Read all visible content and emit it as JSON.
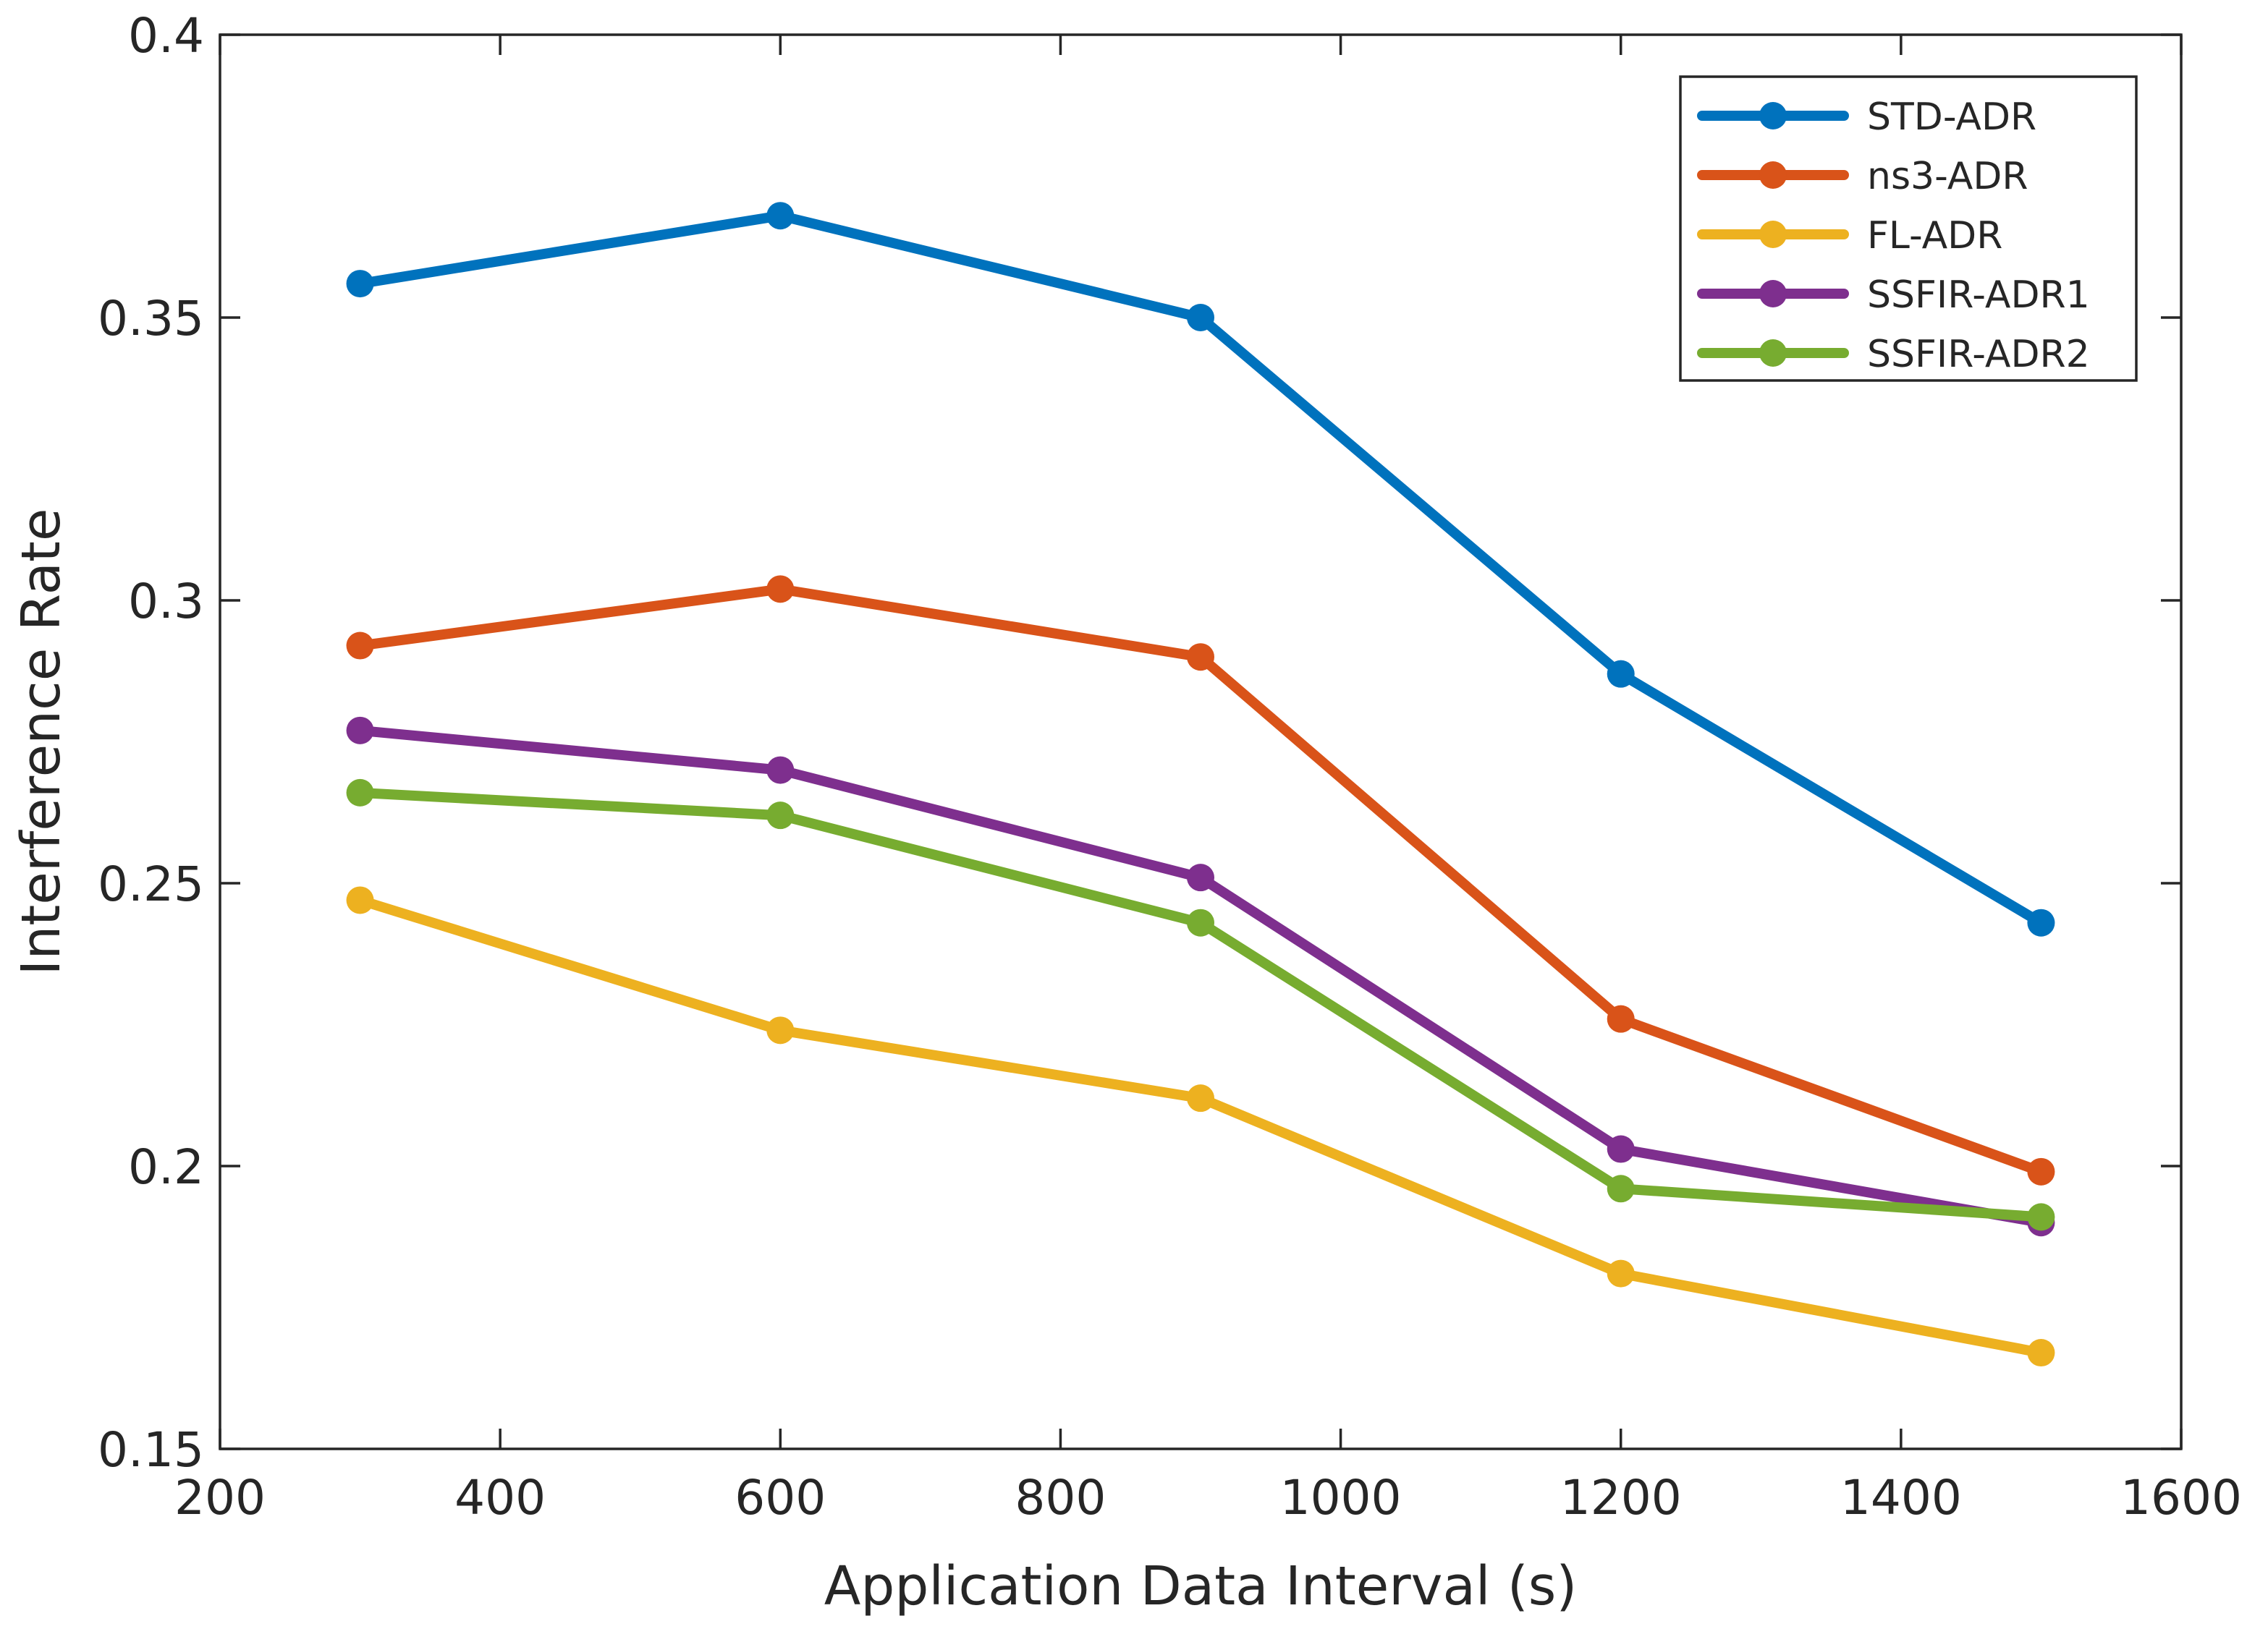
{
  "chart_data": {
    "type": "line",
    "title": "",
    "xlabel": "Application Data Interval (s)",
    "ylabel": "Interference Rate",
    "xlim": [
      200,
      1600
    ],
    "ylim": [
      0.15,
      0.4
    ],
    "grid": false,
    "legend_position": "top-right",
    "x": [
      300,
      600,
      900,
      1200,
      1500
    ],
    "xticks": [
      "200",
      "400",
      "600",
      "800",
      "1000",
      "1200",
      "1400",
      "1600"
    ],
    "xtick_values": [
      200,
      400,
      600,
      800,
      1000,
      1200,
      1400,
      1600
    ],
    "yticks": [
      "0.15",
      "0.2",
      "0.25",
      "0.3",
      "0.35",
      "0.4"
    ],
    "ytick_values": [
      0.15,
      0.2,
      0.25,
      0.3,
      0.35,
      0.4
    ],
    "series": [
      {
        "name": "STD-ADR",
        "color": "#0072BD",
        "values": [
          0.356,
          0.368,
          0.35,
          0.287,
          0.243
        ]
      },
      {
        "name": "ns3-ADR",
        "color": "#D95319",
        "values": [
          0.292,
          0.302,
          0.29,
          0.226,
          0.199
        ]
      },
      {
        "name": "FL-ADR",
        "color": "#EDB120",
        "values": [
          0.247,
          0.224,
          0.212,
          0.181,
          0.167
        ]
      },
      {
        "name": "SSFIR-ADR1",
        "color": "#7E2F8E",
        "values": [
          0.277,
          0.27,
          0.251,
          0.203,
          0.19
        ]
      },
      {
        "name": "SSFIR-ADR2",
        "color": "#77AC30",
        "values": [
          0.266,
          0.262,
          0.243,
          0.196,
          0.191
        ]
      }
    ]
  }
}
